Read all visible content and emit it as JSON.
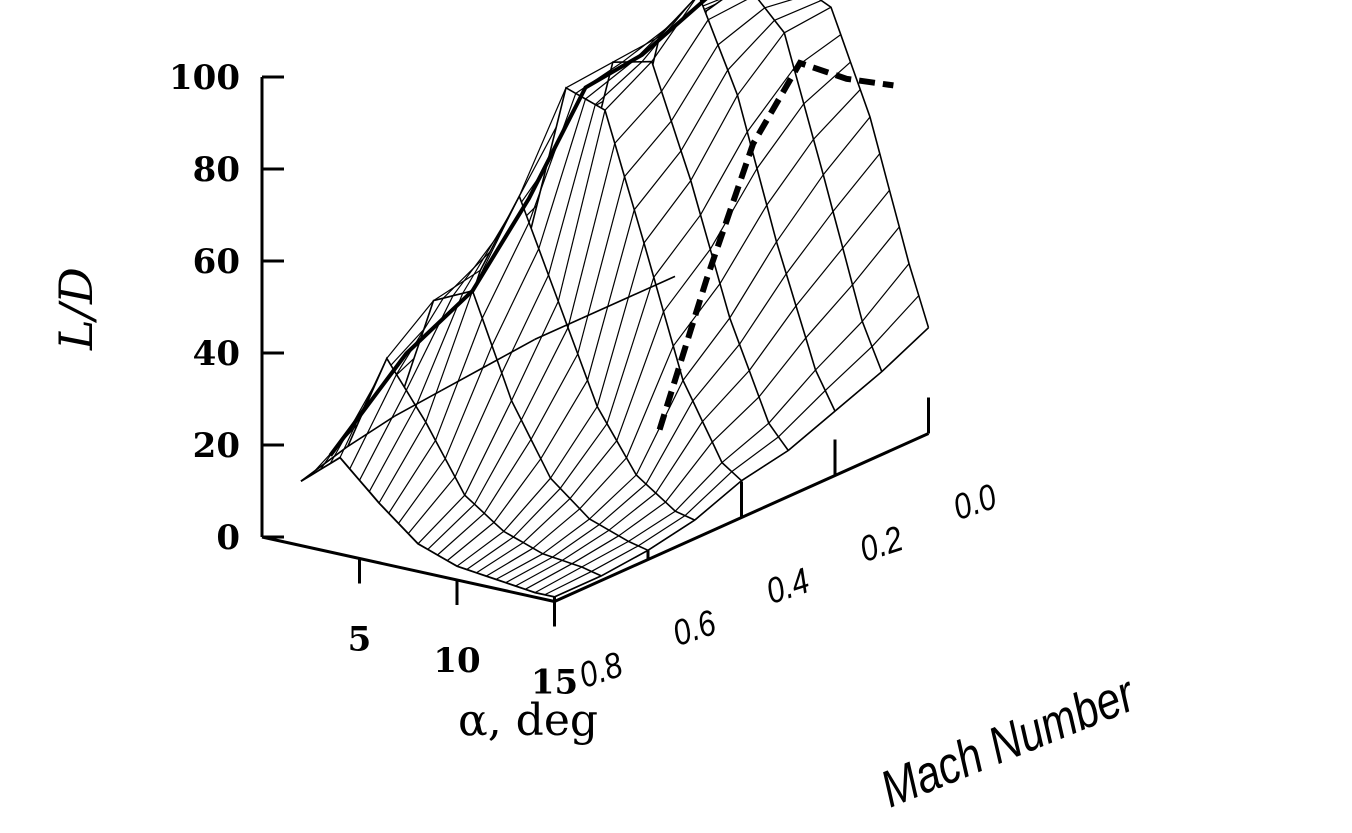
{
  "chart_data": {
    "type": "surface",
    "title": "",
    "ylabel": "L/D",
    "xlabel": "α, deg",
    "zlabel": "Mach Number",
    "ylim": [
      0,
      100
    ],
    "y_ticks": [
      "0",
      "20",
      "40",
      "60",
      "80",
      "100"
    ],
    "x_ticks": [
      "5",
      "10",
      "15"
    ],
    "z_ticks": [
      "0.8",
      "0.6",
      "0.4",
      "0.2",
      "0.0"
    ],
    "alpha_deg": [
      2,
      4,
      6,
      8,
      10,
      12,
      14,
      15
    ],
    "mach": [
      0.8,
      0.7,
      0.6,
      0.5,
      0.4,
      0.3,
      0.2,
      0.1,
      0.0
    ],
    "series": [
      {
        "mach": 0.8,
        "values": [
          14,
          21,
          13,
          6,
          3,
          2,
          1,
          1
        ]
      },
      {
        "mach": 0.7,
        "values": [
          17,
          38,
          26,
          12,
          6,
          3,
          2,
          1
        ]
      },
      {
        "mach": 0.6,
        "values": [
          19,
          46,
          50,
          28,
          13,
          6,
          3,
          2
        ]
      },
      {
        "mach": 0.5,
        "values": [
          20,
          48,
          66,
          45,
          24,
          11,
          5,
          4
        ]
      },
      {
        "mach": 0.4,
        "values": [
          21,
          49,
          85,
          82,
          55,
          27,
          11,
          8
        ]
      },
      {
        "mach": 0.3,
        "values": [
          22,
          50,
          86,
          88,
          64,
          36,
          15,
          10
        ]
      },
      {
        "mach": 0.2,
        "values": [
          22,
          50,
          87,
          98,
          78,
          48,
          22,
          14
        ]
      },
      {
        "mach": 0.1,
        "values": [
          22,
          50,
          88,
          96,
          87,
          58,
          28,
          18
        ]
      },
      {
        "mach": 0.0,
        "values": [
          22,
          51,
          88,
          92,
          88,
          66,
          36,
          23
        ]
      }
    ],
    "max_ld_curve": [
      {
        "mach": 0.8,
        "alpha": 3.5,
        "ld": 21
      },
      {
        "mach": 0.7,
        "alpha": 5,
        "ld": 40
      },
      {
        "mach": 0.6,
        "alpha": 6,
        "ld": 50
      },
      {
        "mach": 0.5,
        "alpha": 6.5,
        "ld": 66
      },
      {
        "mach": 0.4,
        "alpha": 7,
        "ld": 86
      },
      {
        "mach": 0.3,
        "alpha": 7.5,
        "ld": 89
      },
      {
        "mach": 0.2,
        "alpha": 8.5,
        "ld": 98
      },
      {
        "mach": 0.1,
        "alpha": 9.5,
        "ld": 95
      },
      {
        "mach": 0.0,
        "alpha": 10,
        "ld": 92
      }
    ],
    "limit_curve": [
      {
        "mach": 0.5,
        "ld": 22
      },
      {
        "mach": 0.4,
        "ld": 50
      },
      {
        "mach": 0.3,
        "ld": 75
      },
      {
        "mach": 0.2,
        "ld": 88
      },
      {
        "mach": 0.1,
        "ld": 80
      },
      {
        "mach": 0.0,
        "ld": 74
      }
    ],
    "grid": false,
    "legend": "none"
  }
}
